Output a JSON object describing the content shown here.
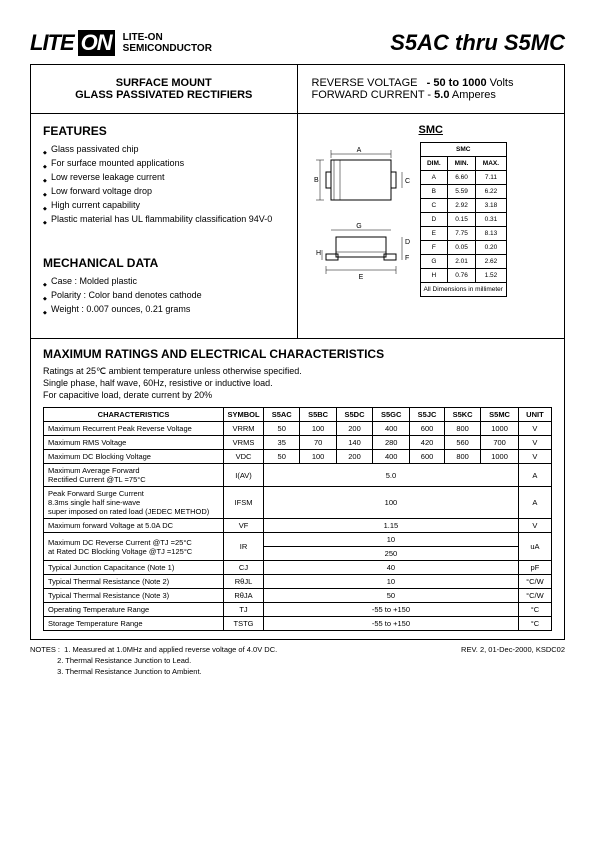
{
  "logo": {
    "lite": "LITE",
    "on": "ON",
    "sub1": "LITE-ON",
    "sub2": "SEMICONDUCTOR"
  },
  "title": "S5AC thru S5MC",
  "subtitle": {
    "l1": "SURFACE MOUNT",
    "l2": "GLASS PASSIVATED RECTIFIERS"
  },
  "specs": {
    "rv_label": "REVERSE VOLTAGE",
    "rv_val": "- 50 to 1000",
    "rv_unit": "Volts",
    "fc_label": "FORWARD CURRENT -",
    "fc_val": "5.0",
    "fc_unit": "Amperes"
  },
  "features": {
    "h": "FEATURES",
    "items": [
      "Glass passivated chip",
      "For surface mounted applications",
      "Low reverse leakage current",
      "Low forward voltage drop",
      "High current capability",
      "Plastic material has UL flammability classification 94V-0"
    ]
  },
  "mech": {
    "h": "MECHANICAL DATA",
    "items": [
      "Case : Molded plastic",
      "Polarity : Color band denotes cathode",
      "Weight : 0.007 ounces, 0.21 grams"
    ]
  },
  "pkg": {
    "title": "SMC"
  },
  "dims": {
    "header": [
      "DIM.",
      "MIN.",
      "MAX."
    ],
    "title": "SMC",
    "rows": [
      [
        "A",
        "6.60",
        "7.11"
      ],
      [
        "B",
        "5.59",
        "6.22"
      ],
      [
        "C",
        "2.92",
        "3.18"
      ],
      [
        "D",
        "0.15",
        "0.31"
      ],
      [
        "E",
        "7.75",
        "8.13"
      ],
      [
        "F",
        "0.05",
        "0.20"
      ],
      [
        "G",
        "2.01",
        "2.62"
      ],
      [
        "H",
        "0.76",
        "1.52"
      ]
    ],
    "footer": "All Dimensions in millimeter"
  },
  "ratings": {
    "h": "MAXIMUM RATINGS AND ELECTRICAL CHARACTERISTICS",
    "p": [
      "Ratings at 25℃ ambient temperature unless otherwise specified.",
      "Single phase, half wave, 60Hz, resistive or inductive load.",
      "For capacitive load, derate current by 20%"
    ]
  },
  "table": {
    "head": [
      "CHARACTERISTICS",
      "SYMBOL",
      "S5AC",
      "S5BC",
      "S5DC",
      "S5GC",
      "S5JC",
      "S5KC",
      "S5MC",
      "UNIT"
    ],
    "rows": [
      {
        "c": "Maximum Recurrent Peak Reverse Voltage",
        "s": "VRRM",
        "v": [
          "50",
          "100",
          "200",
          "400",
          "600",
          "800",
          "1000"
        ],
        "u": "V"
      },
      {
        "c": "Maximum RMS Voltage",
        "s": "VRMS",
        "v": [
          "35",
          "70",
          "140",
          "280",
          "420",
          "560",
          "700"
        ],
        "u": "V"
      },
      {
        "c": "Maximum DC Blocking Voltage",
        "s": "VDC",
        "v": [
          "50",
          "100",
          "200",
          "400",
          "600",
          "800",
          "1000"
        ],
        "u": "V"
      },
      {
        "c": "Maximum Average Forward\nRectified Current                    @TL =75°C",
        "s": "I(AV)",
        "span": "5.0",
        "u": "A"
      },
      {
        "c": "Peak Forward Surge Current\n8.3ms single half sine-wave\nsuper imposed on rated load (JEDEC METHOD)",
        "s": "IFSM",
        "span": "100",
        "u": "A"
      },
      {
        "c": "Maximum forward Voltage at 5.0A DC",
        "s": "VF",
        "span": "1.15",
        "u": "V"
      },
      {
        "c": "Maximum DC Reverse Current        @TJ =25°C\nat Rated DC Blocking Voltage          @TJ =125°C",
        "s": "IR",
        "span2": [
          "10",
          "250"
        ],
        "u": "uA"
      },
      {
        "c": "Typical Junction Capacitance (Note 1)",
        "s": "CJ",
        "span": "40",
        "u": "pF"
      },
      {
        "c": "Typical Thermal Resistance (Note 2)",
        "s": "RθJL",
        "span": "10",
        "u": "°C/W"
      },
      {
        "c": "Typical Thermal Resistance (Note 3)",
        "s": "RθJA",
        "span": "50",
        "u": "°C/W"
      },
      {
        "c": "Operating Temperature Range",
        "s": "TJ",
        "span": "-55 to +150",
        "u": "°C"
      },
      {
        "c": "Storage Temperature Range",
        "s": "TSTG",
        "span": "-55 to +150",
        "u": "°C"
      }
    ]
  },
  "notes": {
    "l": [
      "NOTES :  1. Measured at 1.0MHz and applied reverse voltage of 4.0V DC.",
      "             2. Thermal Resistance Junction to Lead.",
      "             3. Thermal Resistance Junction to Ambient."
    ],
    "r": "REV. 2, 01-Dec-2000, KSDC02"
  }
}
